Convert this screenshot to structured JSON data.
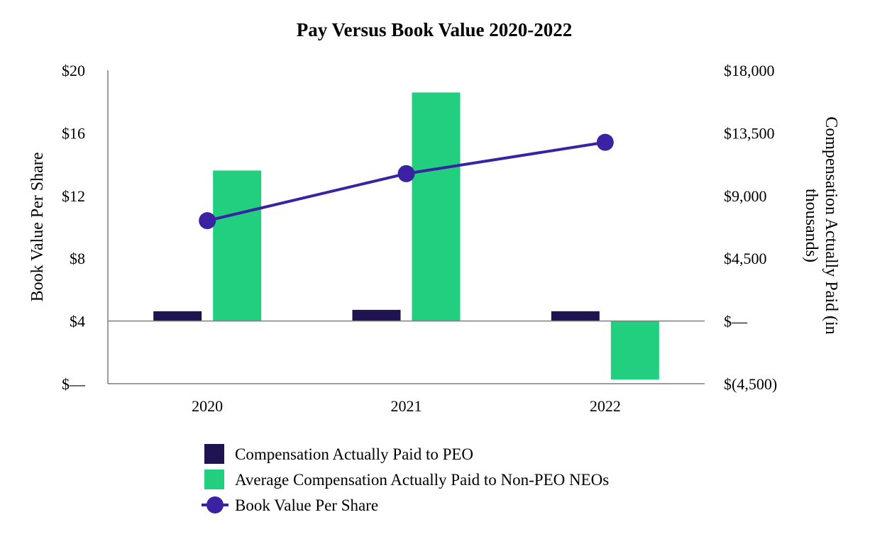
{
  "chart_data": {
    "type": "bar",
    "title": "Pay Versus Book Value 2020-2022",
    "categories": [
      "2020",
      "2021",
      "2022"
    ],
    "series": [
      {
        "name": "Compensation Actually Paid to PEO",
        "type": "bar",
        "axis": "right",
        "color": "#1f1350",
        "values": [
          700,
          800,
          700
        ]
      },
      {
        "name": "Average Compensation Actually Paid to Non-PEO NEOs",
        "type": "bar",
        "axis": "right",
        "color": "#21cf7f",
        "values": [
          10800,
          16400,
          -4200
        ]
      },
      {
        "name": "Book Value Per Share",
        "type": "line",
        "axis": "left",
        "color": "#3b22a3",
        "values": [
          10.4,
          13.4,
          15.4
        ]
      }
    ],
    "y_left": {
      "label": "Book Value Per Share",
      "ylim": [
        0,
        20
      ],
      "ticks": [
        0,
        4,
        8,
        12,
        16,
        20
      ],
      "tick_labels": [
        "$—",
        "$4",
        "$8",
        "$12",
        "$16",
        "$20"
      ]
    },
    "y_right": {
      "label_lines": [
        "Compensation Actually Paid (in",
        "thousands)"
      ],
      "ylim": [
        -4500,
        18000
      ],
      "ticks": [
        -4500,
        0,
        4500,
        9000,
        13500,
        18000
      ],
      "tick_labels": [
        "$(4,500)",
        "$—",
        "$4,500",
        "$9,000",
        "$13,500",
        "$18,000"
      ]
    },
    "legend_position": "bottom",
    "grid": false
  }
}
